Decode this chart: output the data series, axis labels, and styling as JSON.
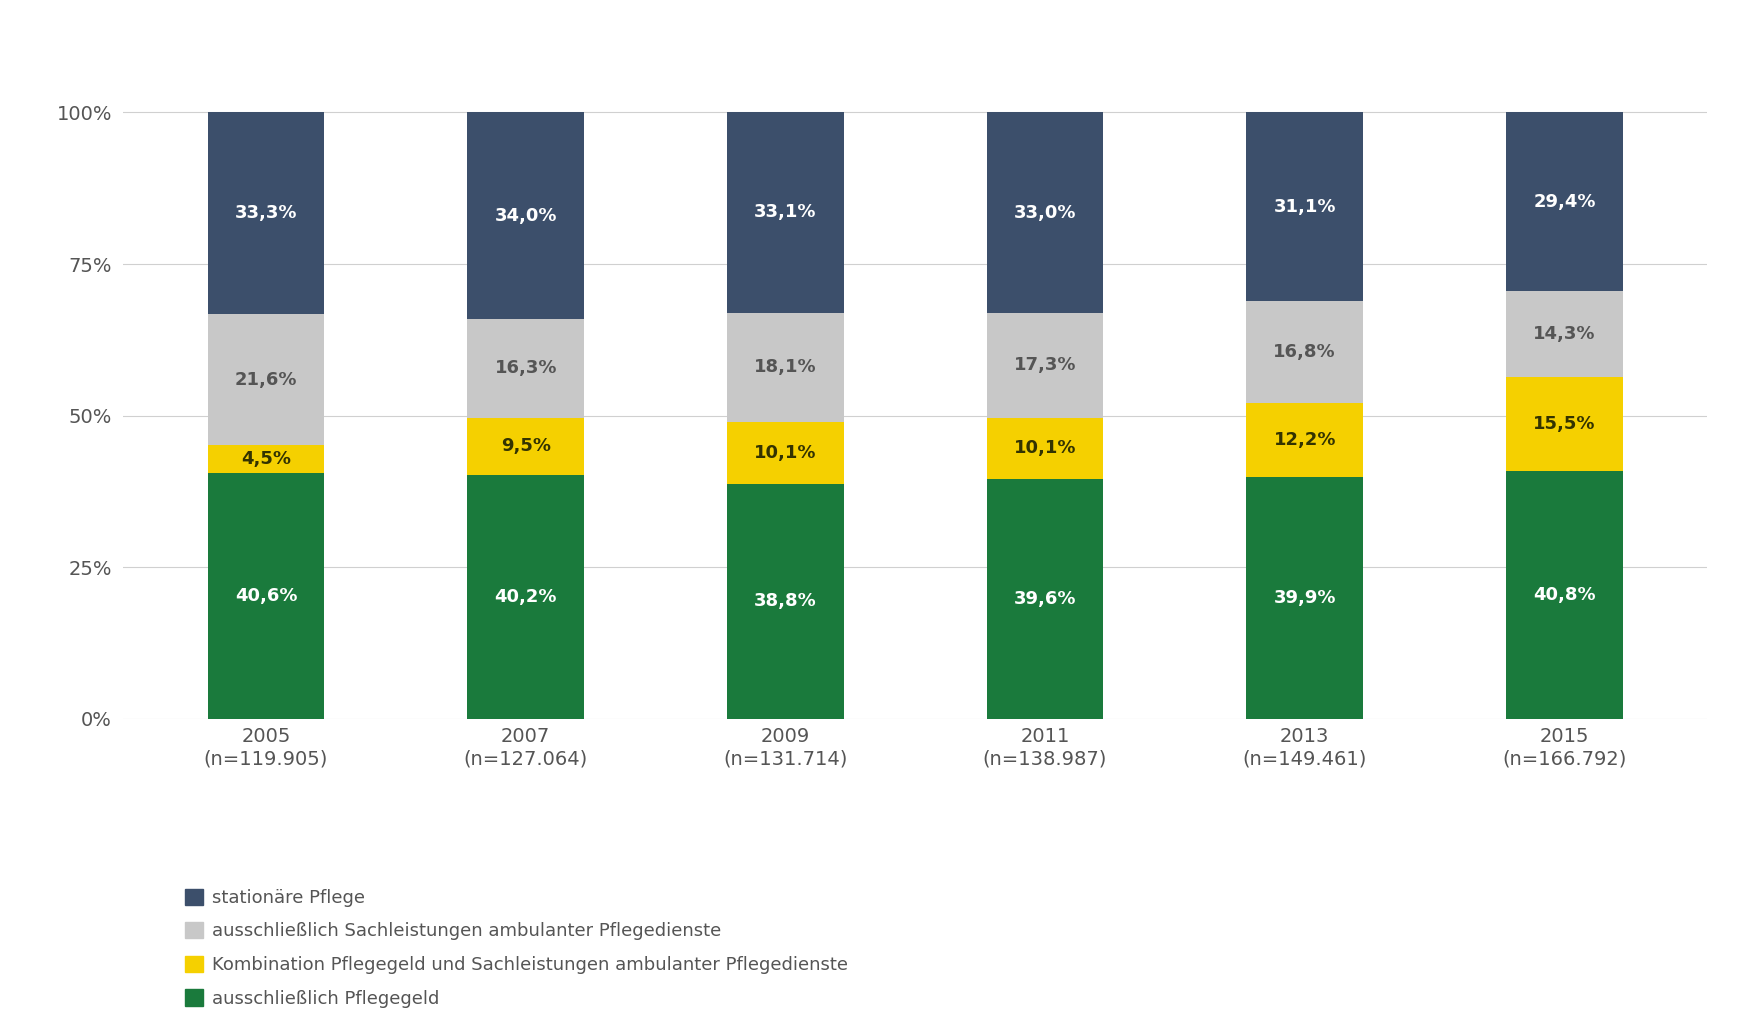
{
  "years": [
    "2005\n(n=119.905)",
    "2007\n(n=127.064)",
    "2009\n(n=131.714)",
    "2011\n(n=138.987)",
    "2013\n(n=149.461)",
    "2015\n(n=166.792)"
  ],
  "pflegegeld": [
    40.6,
    40.2,
    38.8,
    39.6,
    39.9,
    40.8
  ],
  "kombination": [
    4.5,
    9.5,
    10.1,
    10.1,
    12.2,
    15.5
  ],
  "sachleistungen": [
    21.6,
    16.3,
    18.1,
    17.3,
    16.8,
    14.3
  ],
  "stationaer": [
    33.3,
    34.0,
    33.1,
    33.0,
    31.1,
    29.4
  ],
  "color_pflegegeld": "#1a7a3c",
  "color_kombination": "#f5d000",
  "color_sachleistungen": "#c8c8c8",
  "color_stationaer": "#3c4f6b",
  "label_pflegegeld": "ausschließlich Pflegegeld",
  "label_kombination": "Kombination Pflegegeld und Sachleistungen ambulanter Pflegedienste",
  "label_sachleistungen": "ausschließlich Sachleistungen ambulanter Pflegedienste",
  "label_stationaer": "stationäre Pflege",
  "yticks": [
    0,
    25,
    50,
    75,
    100
  ],
  "ytick_labels": [
    "0%",
    "25%",
    "50%",
    "75%",
    "100%"
  ],
  "background_color": "#ffffff",
  "bar_width": 0.45,
  "fontsize_labels": 13,
  "fontsize_ticks": 14,
  "fontsize_legend": 13,
  "text_color_dark": "#555555",
  "text_color_light": "#ffffff",
  "text_color_kombi": "#333300"
}
